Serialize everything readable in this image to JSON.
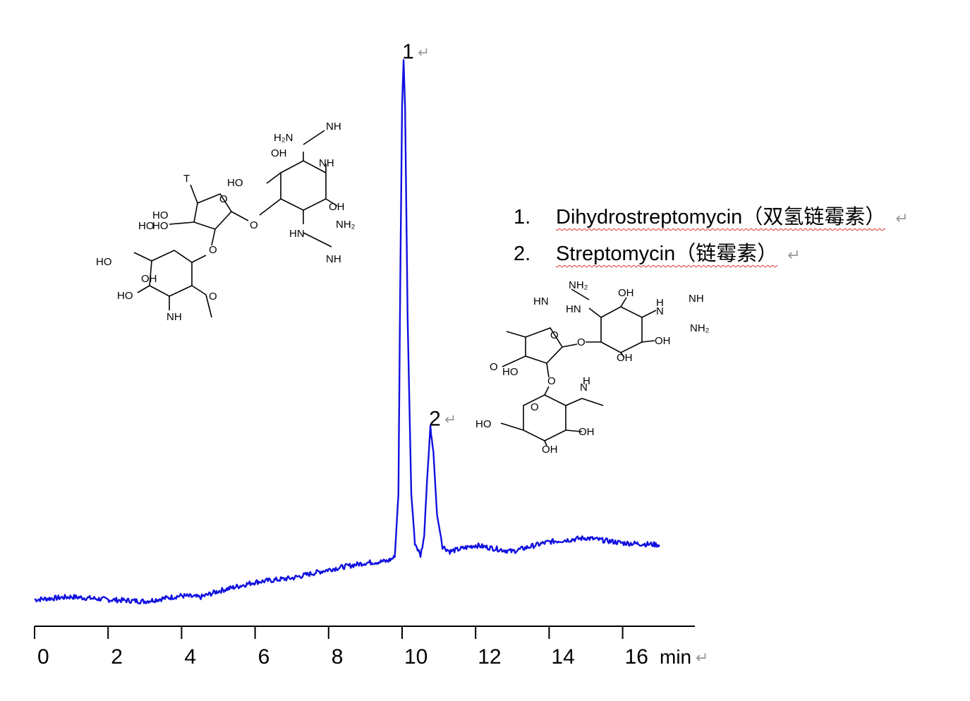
{
  "chart_data": {
    "type": "line",
    "title": "",
    "xlabel": "min",
    "ylabel": "",
    "xlim": [
      0,
      18
    ],
    "ylim": [
      0,
      100
    ],
    "x_ticks": [
      "0",
      "2",
      "4",
      "6",
      "8",
      "10",
      "12",
      "14",
      "16"
    ],
    "grid": false,
    "line_color": "#1010e0",
    "series": [
      {
        "x": [
          0,
          1,
          2,
          3,
          4,
          4.5,
          5,
          6,
          7,
          8,
          9,
          9.6,
          9.8,
          9.9,
          9.95,
          10.0,
          10.04,
          10.08,
          10.15,
          10.25,
          10.35,
          10.5,
          10.6,
          10.68,
          10.77,
          10.85,
          10.95,
          11.1,
          11.3,
          12,
          13,
          13.5,
          14,
          15,
          16,
          17
        ],
        "y": [
          4.7,
          5.2,
          4.7,
          4.4,
          5.4,
          5.1,
          6.2,
          7.8,
          8.5,
          10.0,
          11.2,
          11.5,
          12.2,
          23.4,
          60.8,
          91.9,
          100,
          91.9,
          54.5,
          23.4,
          14.7,
          12.5,
          15.9,
          25.9,
          35.2,
          30.9,
          19.7,
          14.1,
          13.2,
          14.3,
          13.2,
          14.1,
          14.9,
          15.6,
          14.7,
          14.4
        ]
      }
    ],
    "peak_labels": [
      {
        "label": "1",
        "x": 10.04
      },
      {
        "label": "2",
        "x": 10.77
      }
    ],
    "return_mark": "↵"
  },
  "legend": [
    {
      "num": "1.",
      "name": "Dihydrostreptomycin",
      "cn": "（双氢链霉素）"
    },
    {
      "num": "2.",
      "name": "Streptomycin",
      "cn": "（链霉素）"
    }
  ],
  "structure1_labels": [
    "H₂N",
    "NH",
    "OH",
    "NH",
    "HO",
    "HO",
    "OH",
    "HN",
    "NH₂",
    "NH",
    "T",
    "O",
    "HO",
    "HO",
    "O",
    "O",
    "HO",
    "O",
    "HO",
    "NH",
    "OH"
  ],
  "structure2_labels": [
    "NH₂",
    "HN",
    "HN",
    "OH",
    "H",
    "N",
    "NH",
    "NH₂",
    "O",
    "O",
    "OH",
    "OH",
    "O",
    "HO",
    "O",
    "N",
    "H",
    "HO",
    "O",
    "OH",
    "OH"
  ]
}
